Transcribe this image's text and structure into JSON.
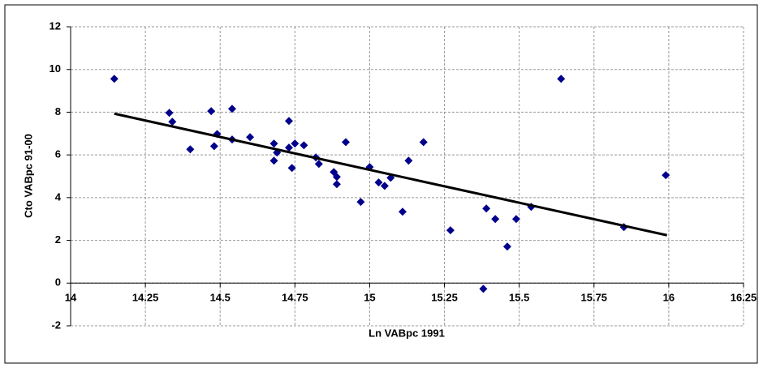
{
  "chart_data": {
    "type": "scatter",
    "xlabel": "Ln VABpc 1991",
    "ylabel": "Cto VABpc 91-00",
    "x": [
      14.146,
      14.33,
      14.34,
      14.4,
      14.47,
      14.48,
      14.49,
      14.54,
      14.54,
      14.6,
      14.68,
      14.68,
      14.69,
      14.73,
      14.73,
      14.75,
      14.74,
      14.78,
      14.82,
      14.83,
      14.88,
      14.89,
      14.89,
      14.92,
      15.0,
      14.97,
      15.03,
      15.05,
      15.07,
      15.13,
      15.18,
      15.11,
      15.27,
      15.39,
      15.38,
      15.42,
      15.46,
      15.49,
      15.54,
      15.64,
      15.85,
      15.99
    ],
    "values": [
      9.56,
      7.97,
      7.55,
      6.26,
      8.05,
      6.41,
      6.98,
      8.16,
      6.72,
      6.83,
      6.53,
      5.73,
      6.11,
      7.59,
      6.34,
      6.53,
      5.39,
      6.45,
      5.88,
      5.58,
      5.2,
      4.97,
      4.63,
      6.6,
      5.43,
      3.8,
      4.71,
      4.55,
      4.93,
      5.73,
      6.6,
      3.34,
      2.47,
      3.49,
      -0.27,
      3.0,
      1.71,
      3.0,
      3.57,
      9.56,
      2.62,
      5.05
    ],
    "color": "#00008b",
    "trendline": {
      "x": [
        14.146,
        15.994
      ],
      "values": [
        7.93,
        2.24
      ],
      "color": "#000000"
    },
    "xlim": [
      14,
      16.25
    ],
    "xticks": [
      14,
      14.25,
      14.5,
      14.75,
      15,
      15.25,
      15.5,
      15.75,
      16,
      16.25
    ],
    "ylim": [
      -2,
      12
    ],
    "yticks": [
      -2,
      0,
      2,
      4,
      6,
      8,
      10,
      12
    ],
    "grid": true
  }
}
